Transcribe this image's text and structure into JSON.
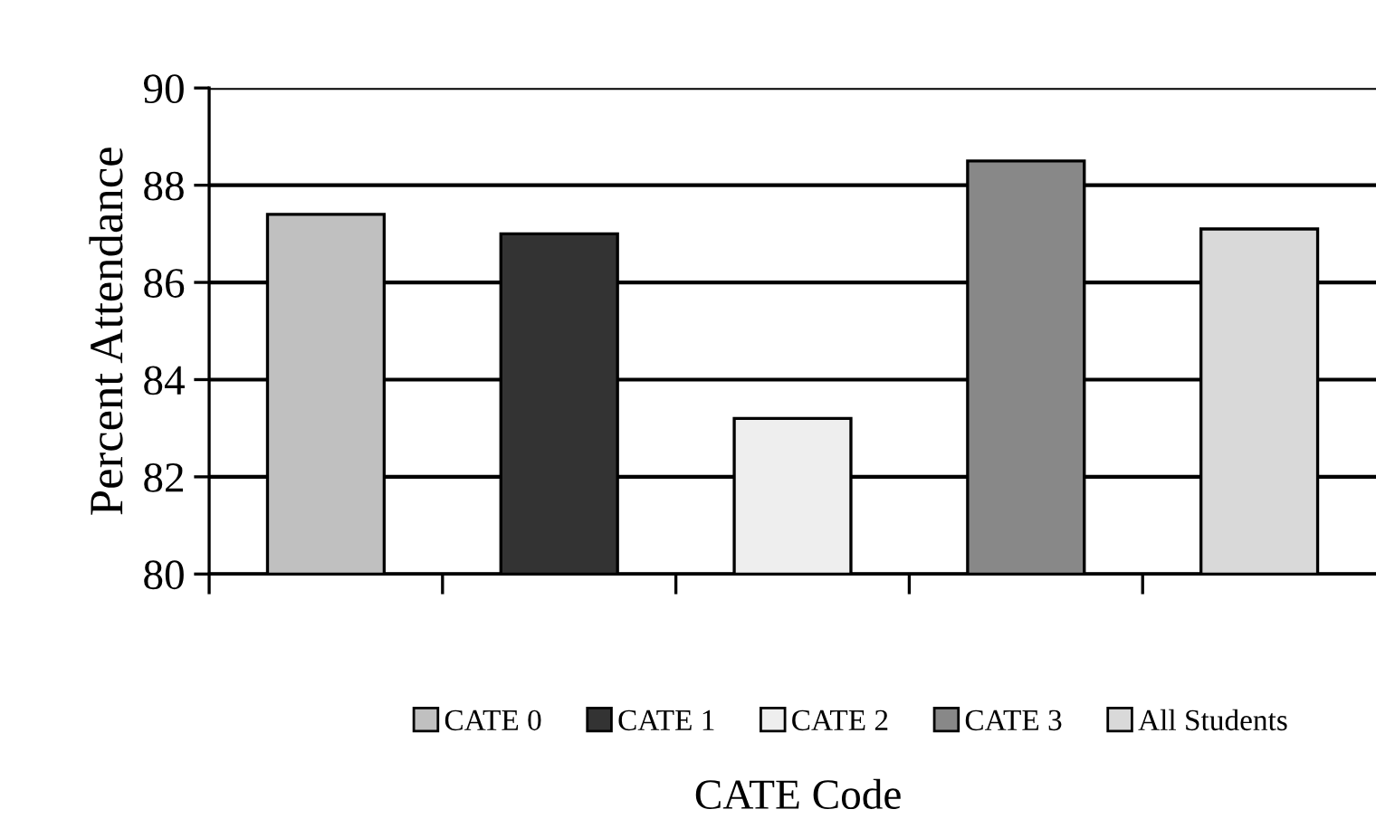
{
  "chart_data": {
    "type": "bar",
    "xlabel": "CATE Code",
    "ylabel": "Percent Attendance",
    "categories": [
      null,
      null,
      null,
      null,
      null
    ],
    "series": [
      {
        "name": "CATE 0",
        "color": "#c0c0c0",
        "values": [
          87.4,
          null,
          null,
          null,
          null
        ]
      },
      {
        "name": "CATE 1",
        "color": "#333333",
        "values": [
          null,
          87.0,
          null,
          null,
          null
        ]
      },
      {
        "name": "CATE 2",
        "color": "#eeeeee",
        "values": [
          null,
          null,
          83.2,
          null,
          null
        ]
      },
      {
        "name": "CATE 3",
        "color": "#888888",
        "values": [
          null,
          null,
          null,
          88.5,
          null
        ]
      },
      {
        "name": "All Students",
        "color": "#d9d9d9",
        "values": [
          null,
          null,
          null,
          null,
          87.1
        ]
      }
    ],
    "ylim": [
      80,
      90
    ],
    "yticks": [
      80,
      82,
      84,
      86,
      88,
      90
    ],
    "grid": "y",
    "legend": "bottom"
  }
}
